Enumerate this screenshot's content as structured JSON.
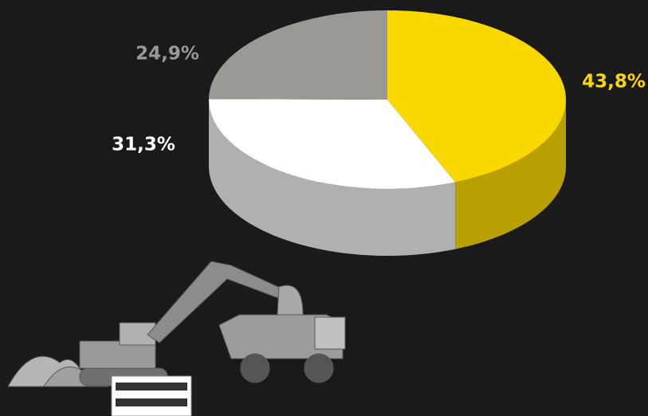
{
  "chart_data": {
    "type": "pie",
    "values": [
      43.8,
      31.3,
      24.9
    ],
    "value_labels": [
      "43,8%",
      "31,3%",
      "24,9%"
    ],
    "colors": [
      "#f9d800",
      "#ffffff",
      "#9a9996"
    ]
  }
}
